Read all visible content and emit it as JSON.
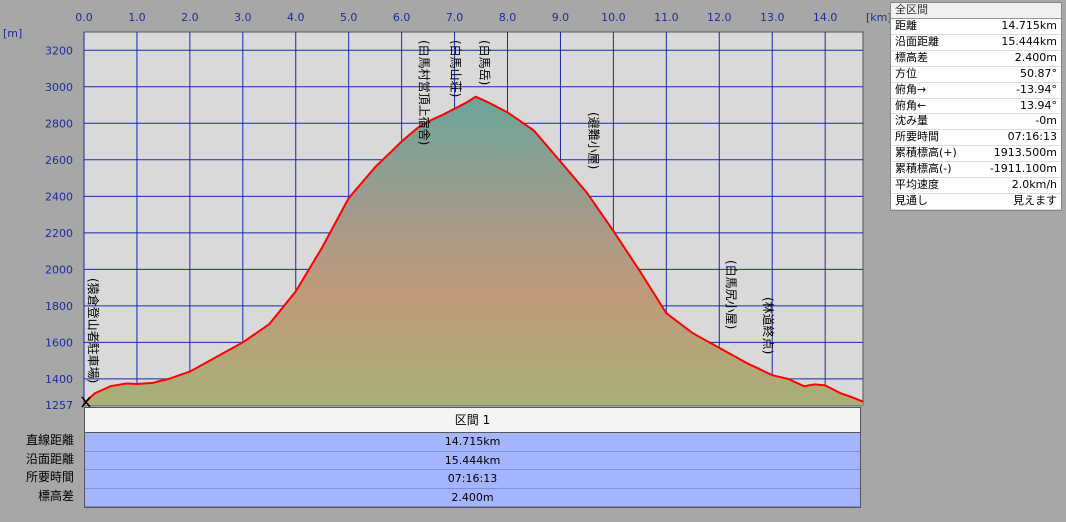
{
  "chart_data": {
    "type": "area",
    "x_unit": "[km]",
    "y_unit": "[m]",
    "xlim": [
      0,
      14.715
    ],
    "ylim": [
      1257,
      3300
    ],
    "x_ticks": [
      "0.0",
      "1.0",
      "2.0",
      "3.0",
      "4.0",
      "5.0",
      "6.0",
      "7.0",
      "8.0",
      "9.0",
      "10.0",
      "11.0",
      "12.0",
      "13.0",
      "14.0"
    ],
    "y_ticks": [
      "1257",
      "1400",
      "1600",
      "1800",
      "2000",
      "2200",
      "2400",
      "2600",
      "2800",
      "3000",
      "3200"
    ],
    "x": [
      0.0,
      0.2,
      0.5,
      0.8,
      1.0,
      1.3,
      1.6,
      2.0,
      2.5,
      3.0,
      3.5,
      4.0,
      4.5,
      5.0,
      5.5,
      6.0,
      6.3,
      6.5,
      6.8,
      7.0,
      7.2,
      7.4,
      7.6,
      8.0,
      8.5,
      9.0,
      9.5,
      10.0,
      10.5,
      11.0,
      11.5,
      12.0,
      12.5,
      13.0,
      13.3,
      13.6,
      13.8,
      14.0,
      14.3,
      14.5,
      14.715
    ],
    "y": [
      1265,
      1320,
      1360,
      1375,
      1372,
      1378,
      1400,
      1440,
      1520,
      1600,
      1700,
      1880,
      2120,
      2390,
      2560,
      2700,
      2775,
      2810,
      2850,
      2880,
      2910,
      2945,
      2920,
      2860,
      2760,
      2590,
      2420,
      2210,
      1990,
      1760,
      1650,
      1570,
      1490,
      1420,
      1400,
      1360,
      1370,
      1365,
      1320,
      1300,
      1275
    ],
    "points_of_interest": [
      {
        "label": "(猿倉登山者駐車場)",
        "x": 0.0
      },
      {
        "label": "(白馬村営頂上宿舎)",
        "x": 6.25
      },
      {
        "label": "(白馬山荘)",
        "x": 6.85
      },
      {
        "label": "(白馬岳)",
        "x": 7.4
      },
      {
        "label": "(避難小屋)",
        "x": 9.45
      },
      {
        "label": "(白馬尻小屋)",
        "x": 12.05
      },
      {
        "label": "(林道終点)",
        "x": 12.75
      }
    ]
  },
  "info_panel": {
    "title": "全区間",
    "rows": [
      {
        "label": "距離",
        "value": "14.715km"
      },
      {
        "label": "沿面距離",
        "value": "15.444km"
      },
      {
        "label": "標高差",
        "value": "2.400m"
      },
      {
        "label": "方位",
        "value": "50.87°"
      },
      {
        "label": "俯角→",
        "value": "-13.94°"
      },
      {
        "label": "俯角←",
        "value": "13.94°"
      },
      {
        "label": "沈み量",
        "value": "-0m"
      },
      {
        "label": "所要時間",
        "value": "07:16:13"
      },
      {
        "label": "累積標高(+)",
        "value": "1913.500m"
      },
      {
        "label": "累積標高(-)",
        "value": "-1911.100m"
      },
      {
        "label": "平均速度",
        "value": "2.0km/h"
      },
      {
        "label": "見通し",
        "value": "見えます"
      }
    ]
  },
  "segment_table": {
    "header": "区間 1",
    "rows": [
      {
        "label": "直線距離",
        "value": "14.715km"
      },
      {
        "label": "沿面距離",
        "value": "15.444km"
      },
      {
        "label": "所要時間",
        "value": "07:16:13"
      },
      {
        "label": "標高差",
        "value": "2.400m"
      }
    ]
  },
  "colors": {
    "profile_line": "#ff0000",
    "grid": "#1a2aaa",
    "plot_bg": "#d9d9d9"
  }
}
